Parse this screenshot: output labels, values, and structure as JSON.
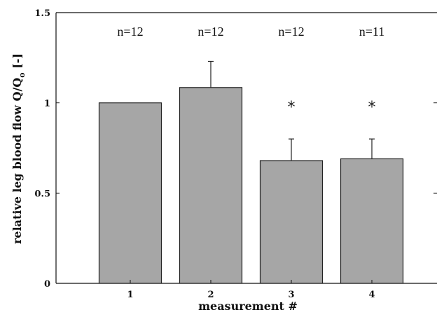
{
  "chart_data": {
    "type": "bar",
    "categories": [
      "1",
      "2",
      "3",
      "4"
    ],
    "values": [
      1.0,
      1.085,
      0.68,
      0.69
    ],
    "error_upper": [
      0.0,
      0.145,
      0.12,
      0.11
    ],
    "annotations": [
      "n=12",
      "n=12",
      "n=12",
      "n=11"
    ],
    "significance_markers": [
      "",
      "",
      "*",
      "*"
    ],
    "xlabel": "measurement #",
    "ylabel_main": "relative leg blood flow  Q/Q",
    "ylabel_subscript": "o",
    "ylabel_suffix": " [-]",
    "ylim": [
      0,
      1.5
    ],
    "yticks": [
      "0",
      "0.5",
      "1",
      "1.5"
    ],
    "grid": false,
    "bar_color": "#a6a6a6",
    "edge_color": "#222222"
  }
}
